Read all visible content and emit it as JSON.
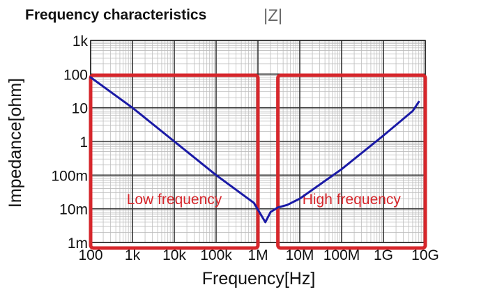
{
  "chart_data": {
    "type": "line",
    "title": "Frequency characteristics",
    "subtitle": "|Z|",
    "xlabel": "Frequency[Hz]",
    "ylabel": "Impedance[ohm]",
    "x_scale": "log",
    "y_scale": "log",
    "xlim": [
      100,
      10000000000
    ],
    "ylim": [
      0.001,
      1000
    ],
    "x_ticks": [
      {
        "value": 100,
        "label": "100"
      },
      {
        "value": 1000,
        "label": "1k"
      },
      {
        "value": 10000,
        "label": "10k"
      },
      {
        "value": 100000,
        "label": "100k"
      },
      {
        "value": 1000000,
        "label": "1M"
      },
      {
        "value": 10000000,
        "label": "10M"
      },
      {
        "value": 100000000,
        "label": "100M"
      },
      {
        "value": 1000000000,
        "label": "1G"
      },
      {
        "value": 10000000000,
        "label": "10G"
      }
    ],
    "y_ticks": [
      {
        "value": 1000,
        "label": "1k"
      },
      {
        "value": 100,
        "label": "100"
      },
      {
        "value": 10,
        "label": "10"
      },
      {
        "value": 1,
        "label": "1"
      },
      {
        "value": 0.1,
        "label": "100m"
      },
      {
        "value": 0.01,
        "label": "10m"
      },
      {
        "value": 0.001,
        "label": "1m"
      }
    ],
    "grid": true,
    "series": [
      {
        "name": "",
        "color": "#1a1aa6",
        "x": [
          100,
          1000,
          10000,
          100000,
          800000,
          1500000,
          2000000,
          3000000,
          5000000,
          10000000,
          100000000,
          1000000000,
          5000000000,
          7000000000
        ],
        "y": [
          80,
          10,
          1,
          0.1,
          0.015,
          0.004,
          0.008,
          0.011,
          0.013,
          0.02,
          0.15,
          1.5,
          8,
          15
        ]
      }
    ],
    "regions": [
      {
        "label": "Low frequency",
        "x_range": [
          100,
          1000000
        ],
        "color": "#d6262b"
      },
      {
        "label": "High frequency",
        "x_range": [
          3000000,
          10000000000
        ],
        "color": "#d6262b"
      }
    ]
  }
}
